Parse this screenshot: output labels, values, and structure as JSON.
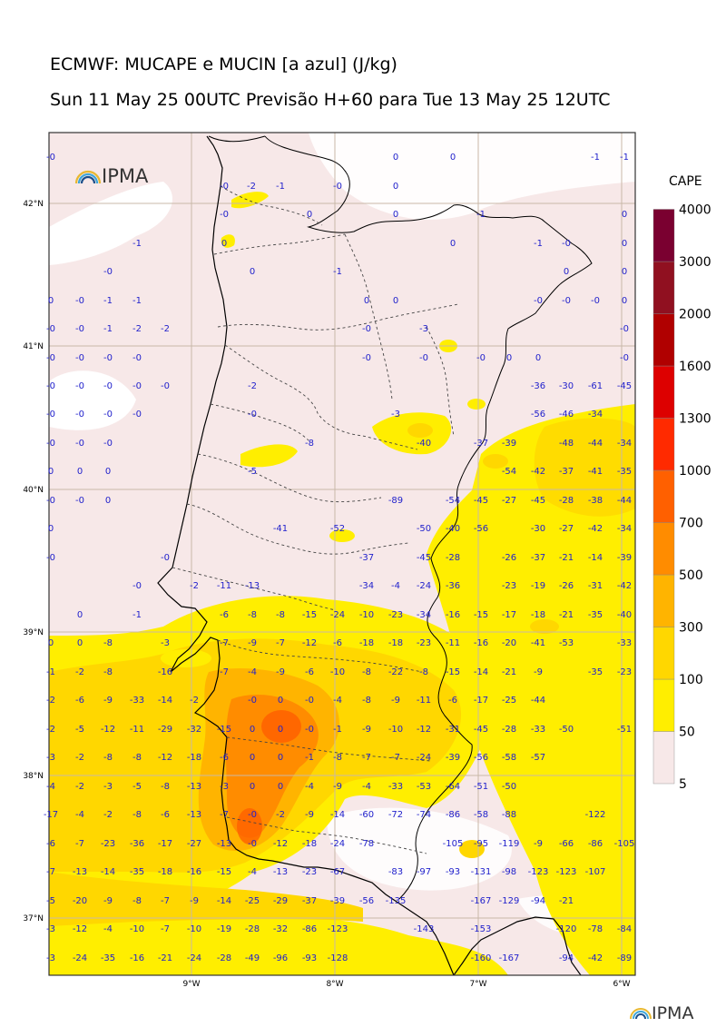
{
  "title_line1": "ECMWF: MUCAPE e MUCIN [a azul] (J/kg)",
  "title_line2": "Sun 11 May 25 00UTC Previsão H+60 para Tue 13 May 25 12UTC",
  "logo_text": "IPMA",
  "colorbar": {
    "title": "CAPE",
    "levels": [
      "5",
      "50",
      "100",
      "300",
      "500",
      "700",
      "1000",
      "1300",
      "1600",
      "2000",
      "3000",
      "4000"
    ],
    "colors": [
      "#f7e8e8",
      "#ffee00",
      "#ffd700",
      "#ffb400",
      "#ff8c00",
      "#ff6000",
      "#ff2a00",
      "#dd0000",
      "#b00000",
      "#901020",
      "#7a0030",
      "#6a1000"
    ]
  },
  "lat_labels": [
    "42°N",
    "41°N",
    "40°N",
    "39°N",
    "38°N",
    "37°N"
  ],
  "lon_labels": [
    "9°W",
    "8°W",
    "7°W",
    "6°W"
  ],
  "cin_values": [
    [
      "-0",
      56,
      172
    ],
    [
      "0",
      436,
      172
    ],
    [
      "0",
      499,
      172
    ],
    [
      "-1",
      656,
      172
    ],
    [
      "-1",
      688,
      172
    ],
    [
      "-0",
      247,
      204
    ],
    [
      "-2",
      277,
      204
    ],
    [
      "-1",
      309,
      204
    ],
    [
      "-0",
      372,
      204
    ],
    [
      "0",
      436,
      204
    ],
    [
      "-0",
      247,
      235
    ],
    [
      "0",
      341,
      235
    ],
    [
      "0",
      436,
      235
    ],
    [
      "-1",
      530,
      235
    ],
    [
      "0",
      688,
      235
    ],
    [
      "-1",
      151,
      267
    ],
    [
      "0",
      247,
      267
    ],
    [
      "0",
      499,
      267
    ],
    [
      "-1",
      593,
      267
    ],
    [
      "-0",
      624,
      267
    ],
    [
      "0",
      688,
      267
    ],
    [
      "-0",
      119,
      298
    ],
    [
      "0",
      278,
      298
    ],
    [
      "-1",
      372,
      298
    ],
    [
      "0",
      624,
      298
    ],
    [
      "0",
      688,
      298
    ],
    [
      "0",
      56,
      330
    ],
    [
      "-0",
      88,
      330
    ],
    [
      "-1",
      119,
      330
    ],
    [
      "-1",
      151,
      330
    ],
    [
      "0",
      404,
      330
    ],
    [
      "0",
      436,
      330
    ],
    [
      "-0",
      593,
      330
    ],
    [
      "-0",
      624,
      330
    ],
    [
      "-0",
      656,
      330
    ],
    [
      "0",
      688,
      330
    ],
    [
      "-0",
      56,
      361
    ],
    [
      "-0",
      88,
      361
    ],
    [
      "-1",
      119,
      361
    ],
    [
      "-2",
      151,
      361
    ],
    [
      "-2",
      182,
      361
    ],
    [
      "-0",
      404,
      361
    ],
    [
      "-3",
      467,
      361
    ],
    [
      "-0",
      688,
      361
    ],
    [
      "-0",
      56,
      393
    ],
    [
      "-0",
      88,
      393
    ],
    [
      "-0",
      119,
      393
    ],
    [
      "-0",
      151,
      393
    ],
    [
      "-0",
      404,
      393
    ],
    [
      "-0",
      467,
      393
    ],
    [
      "-0",
      530,
      393
    ],
    [
      "0",
      561,
      393
    ],
    [
      "0",
      593,
      393
    ],
    [
      "-0",
      688,
      393
    ],
    [
      "-0",
      56,
      424
    ],
    [
      "-0",
      88,
      424
    ],
    [
      "-0",
      119,
      424
    ],
    [
      "-0",
      151,
      424
    ],
    [
      "-0",
      182,
      424
    ],
    [
      "-2",
      278,
      424
    ],
    [
      "-36",
      593,
      424
    ],
    [
      "-30",
      624,
      424
    ],
    [
      "-61",
      656,
      424
    ],
    [
      "-45",
      688,
      424
    ],
    [
      "-0",
      56,
      455
    ],
    [
      "-0",
      88,
      455
    ],
    [
      "-0",
      119,
      455
    ],
    [
      "-0",
      151,
      455
    ],
    [
      "-0",
      278,
      455
    ],
    [
      "-3",
      436,
      455
    ],
    [
      "-56",
      593,
      455
    ],
    [
      "-46",
      624,
      455
    ],
    [
      "-34",
      656,
      455
    ],
    [
      "-0",
      56,
      487
    ],
    [
      "-0",
      88,
      487
    ],
    [
      "-0",
      119,
      487
    ],
    [
      "-8",
      341,
      487
    ],
    [
      "-40",
      467,
      487
    ],
    [
      "-37",
      530,
      487
    ],
    [
      "-39",
      561,
      487
    ],
    [
      "-48",
      624,
      487
    ],
    [
      "-44",
      656,
      487
    ],
    [
      "-34",
      688,
      487
    ],
    [
      "0",
      56,
      518
    ],
    [
      "0",
      88,
      518
    ],
    [
      "0",
      119,
      518
    ],
    [
      "-5",
      278,
      518
    ],
    [
      "-54",
      561,
      518
    ],
    [
      "-42",
      593,
      518
    ],
    [
      "-37",
      624,
      518
    ],
    [
      "-41",
      656,
      518
    ],
    [
      "-35",
      688,
      518
    ],
    [
      "-0",
      56,
      550
    ],
    [
      "-0",
      88,
      550
    ],
    [
      "0",
      119,
      550
    ],
    [
      "-89",
      436,
      550
    ],
    [
      "-54",
      499,
      550
    ],
    [
      "-45",
      530,
      550
    ],
    [
      "-27",
      561,
      550
    ],
    [
      "-45",
      593,
      550
    ],
    [
      "-28",
      624,
      550
    ],
    [
      "-38",
      656,
      550
    ],
    [
      "-44",
      688,
      550
    ],
    [
      "0",
      56,
      581
    ],
    [
      "-41",
      309,
      581
    ],
    [
      "-52",
      372,
      581
    ],
    [
      "-50",
      467,
      581
    ],
    [
      "-40",
      499,
      581
    ],
    [
      "-56",
      530,
      581
    ],
    [
      "-30",
      593,
      581
    ],
    [
      "-27",
      624,
      581
    ],
    [
      "-42",
      656,
      581
    ],
    [
      "-34",
      688,
      581
    ],
    [
      "-0",
      56,
      613
    ],
    [
      "-0",
      182,
      613
    ],
    [
      "-37",
      404,
      613
    ],
    [
      "-45",
      467,
      613
    ],
    [
      "-28",
      499,
      613
    ],
    [
      "-26",
      561,
      613
    ],
    [
      "-37",
      593,
      613
    ],
    [
      "-21",
      624,
      613
    ],
    [
      "-14",
      656,
      613
    ],
    [
      "-39",
      688,
      613
    ],
    [
      "-0",
      151,
      644
    ],
    [
      "-2",
      214,
      644
    ],
    [
      "-11",
      247,
      644
    ],
    [
      "-13",
      278,
      644
    ],
    [
      "-34",
      404,
      644
    ],
    [
      "-4",
      436,
      644
    ],
    [
      "-24",
      467,
      644
    ],
    [
      "-36",
      499,
      644
    ],
    [
      "-23",
      561,
      644
    ],
    [
      "-19",
      593,
      644
    ],
    [
      "-26",
      624,
      644
    ],
    [
      "-31",
      656,
      644
    ],
    [
      "-42",
      688,
      644
    ],
    [
      "0",
      88,
      676
    ],
    [
      "-1",
      151,
      676
    ],
    [
      "-6",
      247,
      676
    ],
    [
      "-8",
      278,
      676
    ],
    [
      "-8",
      309,
      676
    ],
    [
      "-15",
      341,
      676
    ],
    [
      "-24",
      372,
      676
    ],
    [
      "-10",
      404,
      676
    ],
    [
      "-23",
      436,
      676
    ],
    [
      "-34",
      467,
      676
    ],
    [
      "-16",
      499,
      676
    ],
    [
      "-15",
      530,
      676
    ],
    [
      "-17",
      561,
      676
    ],
    [
      "-18",
      593,
      676
    ],
    [
      "-21",
      624,
      676
    ],
    [
      "-35",
      656,
      676
    ],
    [
      "-40",
      688,
      676
    ],
    [
      "0",
      56,
      707
    ],
    [
      "0",
      88,
      707
    ],
    [
      "-8",
      119,
      707
    ],
    [
      "-3",
      182,
      707
    ],
    [
      "-7",
      247,
      707
    ],
    [
      "-9",
      278,
      707
    ],
    [
      "-7",
      309,
      707
    ],
    [
      "-12",
      341,
      707
    ],
    [
      "-6",
      372,
      707
    ],
    [
      "-18",
      404,
      707
    ],
    [
      "-18",
      436,
      707
    ],
    [
      "-23",
      467,
      707
    ],
    [
      "-11",
      499,
      707
    ],
    [
      "-16",
      530,
      707
    ],
    [
      "-20",
      561,
      707
    ],
    [
      "-41",
      593,
      707
    ],
    [
      "-53",
      624,
      707
    ],
    [
      "-33",
      688,
      707
    ],
    [
      "-1",
      56,
      739
    ],
    [
      "-2",
      88,
      739
    ],
    [
      "-8",
      119,
      739
    ],
    [
      "-16",
      182,
      739
    ],
    [
      "-7",
      247,
      739
    ],
    [
      "-4",
      278,
      739
    ],
    [
      "-9",
      309,
      739
    ],
    [
      "-6",
      341,
      739
    ],
    [
      "-10",
      372,
      739
    ],
    [
      "-8",
      404,
      739
    ],
    [
      "-22",
      436,
      739
    ],
    [
      "-8",
      467,
      739
    ],
    [
      "-15",
      499,
      739
    ],
    [
      "-14",
      530,
      739
    ],
    [
      "-21",
      561,
      739
    ],
    [
      "-9",
      593,
      739
    ],
    [
      "-35",
      656,
      739
    ],
    [
      "-23",
      688,
      739
    ],
    [
      "-2",
      56,
      770
    ],
    [
      "-6",
      88,
      770
    ],
    [
      "-9",
      119,
      770
    ],
    [
      "-33",
      151,
      770
    ],
    [
      "-14",
      182,
      770
    ],
    [
      "-2",
      214,
      770
    ],
    [
      "-0",
      278,
      770
    ],
    [
      "0",
      309,
      770
    ],
    [
      "-0",
      341,
      770
    ],
    [
      "-4",
      372,
      770
    ],
    [
      "-8",
      404,
      770
    ],
    [
      "-9",
      436,
      770
    ],
    [
      "-11",
      467,
      770
    ],
    [
      "-6",
      499,
      770
    ],
    [
      "-17",
      530,
      770
    ],
    [
      "-25",
      561,
      770
    ],
    [
      "-44",
      593,
      770
    ],
    [
      "-2",
      56,
      802
    ],
    [
      "-5",
      88,
      802
    ],
    [
      "-12",
      119,
      802
    ],
    [
      "-11",
      151,
      802
    ],
    [
      "-29",
      182,
      802
    ],
    [
      "-32",
      214,
      802
    ],
    [
      "-15",
      247,
      802
    ],
    [
      "0",
      278,
      802
    ],
    [
      "0",
      309,
      802
    ],
    [
      "-0",
      341,
      802
    ],
    [
      "-1",
      372,
      802
    ],
    [
      "-9",
      404,
      802
    ],
    [
      "-10",
      436,
      802
    ],
    [
      "-12",
      467,
      802
    ],
    [
      "-31",
      499,
      802
    ],
    [
      "-45",
      530,
      802
    ],
    [
      "-28",
      561,
      802
    ],
    [
      "-33",
      593,
      802
    ],
    [
      "-50",
      624,
      802
    ],
    [
      "-51",
      688,
      802
    ],
    [
      "-3",
      56,
      833
    ],
    [
      "-2",
      88,
      833
    ],
    [
      "-8",
      119,
      833
    ],
    [
      "-8",
      151,
      833
    ],
    [
      "-12",
      182,
      833
    ],
    [
      "-18",
      214,
      833
    ],
    [
      "-6",
      247,
      833
    ],
    [
      "0",
      278,
      833
    ],
    [
      "0",
      309,
      833
    ],
    [
      "-1",
      341,
      833
    ],
    [
      "-8",
      372,
      833
    ],
    [
      "-7",
      404,
      833
    ],
    [
      "-7",
      436,
      833
    ],
    [
      "-24",
      467,
      833
    ],
    [
      "-39",
      499,
      833
    ],
    [
      "-56",
      530,
      833
    ],
    [
      "-58",
      561,
      833
    ],
    [
      "-57",
      593,
      833
    ],
    [
      "-4",
      56,
      865
    ],
    [
      "-2",
      88,
      865
    ],
    [
      "-3",
      119,
      865
    ],
    [
      "-5",
      151,
      865
    ],
    [
      "-8",
      182,
      865
    ],
    [
      "-13",
      214,
      865
    ],
    [
      "-3",
      247,
      865
    ],
    [
      "0",
      278,
      865
    ],
    [
      "0",
      309,
      865
    ],
    [
      "-4",
      341,
      865
    ],
    [
      "-9",
      372,
      865
    ],
    [
      "-4",
      404,
      865
    ],
    [
      "-33",
      436,
      865
    ],
    [
      "-53",
      467,
      865
    ],
    [
      "-64",
      499,
      865
    ],
    [
      "-51",
      530,
      865
    ],
    [
      "-50",
      561,
      865
    ],
    [
      "-17",
      56,
      896
    ],
    [
      "-4",
      88,
      896
    ],
    [
      "-2",
      119,
      896
    ],
    [
      "-8",
      151,
      896
    ],
    [
      "-6",
      182,
      896
    ],
    [
      "-13",
      214,
      896
    ],
    [
      "-7",
      247,
      896
    ],
    [
      "-0",
      278,
      896
    ],
    [
      "-2",
      309,
      896
    ],
    [
      "-9",
      341,
      896
    ],
    [
      "-14",
      372,
      896
    ],
    [
      "-60",
      404,
      896
    ],
    [
      "-72",
      436,
      896
    ],
    [
      "-74",
      467,
      896
    ],
    [
      "-86",
      499,
      896
    ],
    [
      "-58",
      530,
      896
    ],
    [
      "-88",
      561,
      896
    ],
    [
      "-122",
      656,
      896
    ],
    [
      "-6",
      56,
      928
    ],
    [
      "-7",
      88,
      928
    ],
    [
      "-23",
      119,
      928
    ],
    [
      "-36",
      151,
      928
    ],
    [
      "-17",
      182,
      928
    ],
    [
      "-27",
      214,
      928
    ],
    [
      "-13",
      247,
      928
    ],
    [
      "-0",
      278,
      928
    ],
    [
      "-12",
      309,
      928
    ],
    [
      "-18",
      341,
      928
    ],
    [
      "-24",
      372,
      928
    ],
    [
      "-78",
      404,
      928
    ],
    [
      "-105",
      499,
      928
    ],
    [
      "-95",
      530,
      928
    ],
    [
      "-119",
      561,
      928
    ],
    [
      "-9",
      593,
      928
    ],
    [
      "-66",
      624,
      928
    ],
    [
      "-86",
      656,
      928
    ],
    [
      "-105",
      688,
      928
    ],
    [
      "-7",
      56,
      959
    ],
    [
      "-13",
      88,
      959
    ],
    [
      "-14",
      119,
      959
    ],
    [
      "-35",
      151,
      959
    ],
    [
      "-18",
      182,
      959
    ],
    [
      "-16",
      214,
      959
    ],
    [
      "-15",
      247,
      959
    ],
    [
      "-4",
      278,
      959
    ],
    [
      "-13",
      309,
      959
    ],
    [
      "-23",
      341,
      959
    ],
    [
      "-67",
      372,
      959
    ],
    [
      "-83",
      436,
      959
    ],
    [
      "-97",
      467,
      959
    ],
    [
      "-93",
      499,
      959
    ],
    [
      "-131",
      530,
      959
    ],
    [
      "-98",
      561,
      959
    ],
    [
      "-123",
      593,
      959
    ],
    [
      "-123",
      624,
      959
    ],
    [
      "-107",
      656,
      959
    ],
    [
      "-5",
      56,
      991
    ],
    [
      "-20",
      88,
      991
    ],
    [
      "-9",
      119,
      991
    ],
    [
      "-8",
      151,
      991
    ],
    [
      "-7",
      182,
      991
    ],
    [
      "-9",
      214,
      991
    ],
    [
      "-14",
      247,
      991
    ],
    [
      "-25",
      278,
      991
    ],
    [
      "-29",
      309,
      991
    ],
    [
      "-37",
      341,
      991
    ],
    [
      "-39",
      372,
      991
    ],
    [
      "-56",
      404,
      991
    ],
    [
      "-135",
      436,
      991
    ],
    [
      "-167",
      530,
      991
    ],
    [
      "-129",
      561,
      991
    ],
    [
      "-94",
      593,
      991
    ],
    [
      "-21",
      624,
      991
    ],
    [
      "-3",
      56,
      1022
    ],
    [
      "-12",
      88,
      1022
    ],
    [
      "-4",
      119,
      1022
    ],
    [
      "-10",
      151,
      1022
    ],
    [
      "-7",
      182,
      1022
    ],
    [
      "-10",
      214,
      1022
    ],
    [
      "-19",
      247,
      1022
    ],
    [
      "-28",
      278,
      1022
    ],
    [
      "-32",
      309,
      1022
    ],
    [
      "-86",
      341,
      1022
    ],
    [
      "-123",
      372,
      1022
    ],
    [
      "-143",
      467,
      1022
    ],
    [
      "-153",
      530,
      1022
    ],
    [
      "-120",
      624,
      1022
    ],
    [
      "-78",
      656,
      1022
    ],
    [
      "-84",
      688,
      1022
    ],
    [
      "-3",
      56,
      1054
    ],
    [
      "-24",
      88,
      1054
    ],
    [
      "-35",
      119,
      1054
    ],
    [
      "-16",
      151,
      1054
    ],
    [
      "-21",
      182,
      1054
    ],
    [
      "-24",
      214,
      1054
    ],
    [
      "-28",
      247,
      1054
    ],
    [
      "-49",
      278,
      1054
    ],
    [
      "-96",
      309,
      1054
    ],
    [
      "-93",
      341,
      1054
    ],
    [
      "-128",
      372,
      1054
    ],
    [
      "-160",
      530,
      1054
    ],
    [
      "-167",
      561,
      1054
    ],
    [
      "-94",
      624,
      1054
    ],
    [
      "-42",
      656,
      1054
    ],
    [
      "-89",
      688,
      1054
    ]
  ]
}
